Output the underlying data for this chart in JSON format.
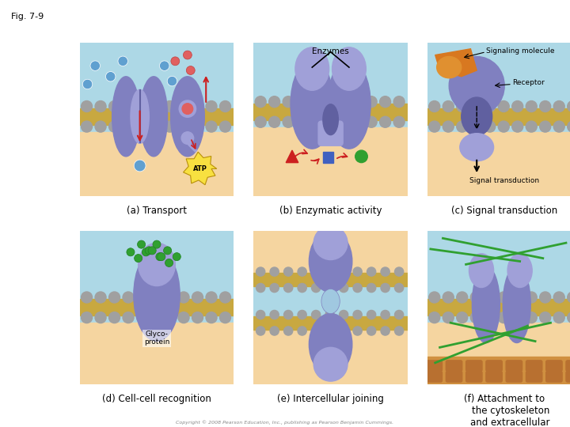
{
  "title": "Fig. 7-9",
  "bg_color": "#ffffff",
  "light_blue": "#add8e6",
  "tan_color": "#f5d5a0",
  "mem_color": "#c8a840",
  "mem_gray": "#a0a0a0",
  "prot_color": "#8080c0",
  "prot_dark": "#6060a0",
  "prot_light": "#a0a0d8",
  "green_color": "#30a030",
  "orange_color": "#d87820",
  "atp_yellow": "#f8e040",
  "red_color": "#cc2020",
  "blue_mol": "#60a0d0",
  "pink_mol": "#e06060",
  "captions": {
    "a": "(a) Transport",
    "b": "(b) Enzymatic activity",
    "c": "(c) Signal transduction",
    "d": "(d) Cell-cell recognition",
    "e": "(e) Intercellular joining",
    "f": "(f) Attachment to\n    the cytoskeleton\n    and extracellular\n    matrix (ECM)"
  },
  "labels": {
    "enzymes": "Enzymes",
    "signaling": "Signaling molecule",
    "receptor": "Receptor",
    "signal_trans": "Signal transduction",
    "atp": "ATP",
    "glyco": "Glyco-\nprotein"
  },
  "copyright": "Copyright © 2008 Pearson Education, Inc., publishing as Pearson Benjamin Cummings.",
  "font_size_caption": 8.5,
  "font_size_label": 7,
  "font_size_title": 8
}
